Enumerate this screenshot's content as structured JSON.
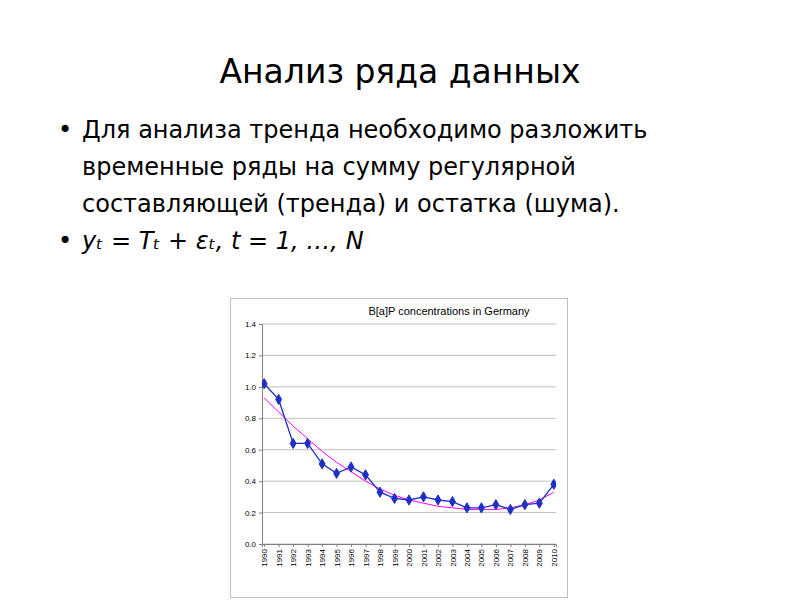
{
  "slide": {
    "title": "Анализ ряда данных",
    "bullets": [
      "Для анализа тренда необходимо разложить временные ряды на сумму регулярной составляющей (тренда) и остатка (шума).",
      "yₜ = Tₜ + εₜ, t = 1, …, N"
    ]
  },
  "chart_data": {
    "type": "line",
    "title": "B[a]P concentrations in Germany",
    "categories": [
      "1990",
      "1991",
      "1992",
      "1993",
      "1994",
      "1995",
      "1996",
      "1997",
      "1998",
      "1999",
      "2000",
      "2001",
      "2002",
      "2003",
      "2004",
      "2005",
      "2006",
      "2007",
      "2008",
      "2009",
      "2010"
    ],
    "series": [
      {
        "color": "#1f2fc4",
        "marker": "diamond",
        "line_style": "solid",
        "values": [
          1.02,
          0.92,
          0.64,
          0.64,
          0.51,
          0.45,
          0.49,
          0.44,
          0.33,
          0.29,
          0.28,
          0.3,
          0.28,
          0.27,
          0.23,
          0.23,
          0.25,
          0.22,
          0.25,
          0.26,
          0.38
        ]
      },
      {
        "color": "#ff00ff",
        "marker": "none",
        "line_style": "solid",
        "values": [
          0.93,
          0.84,
          0.75,
          0.67,
          0.59,
          0.52,
          0.46,
          0.4,
          0.35,
          0.31,
          0.28,
          0.26,
          0.24,
          0.23,
          0.22,
          0.22,
          0.22,
          0.23,
          0.25,
          0.28,
          0.33
        ]
      }
    ],
    "ylim": [
      0,
      1.4
    ],
    "yticks": [
      {
        "value": 0,
        "label": "0.0"
      },
      0.2,
      0.4,
      0.6,
      0.8,
      {
        "value": 1,
        "label": "1.0"
      },
      1.2,
      1.4
    ],
    "grid": true
  }
}
